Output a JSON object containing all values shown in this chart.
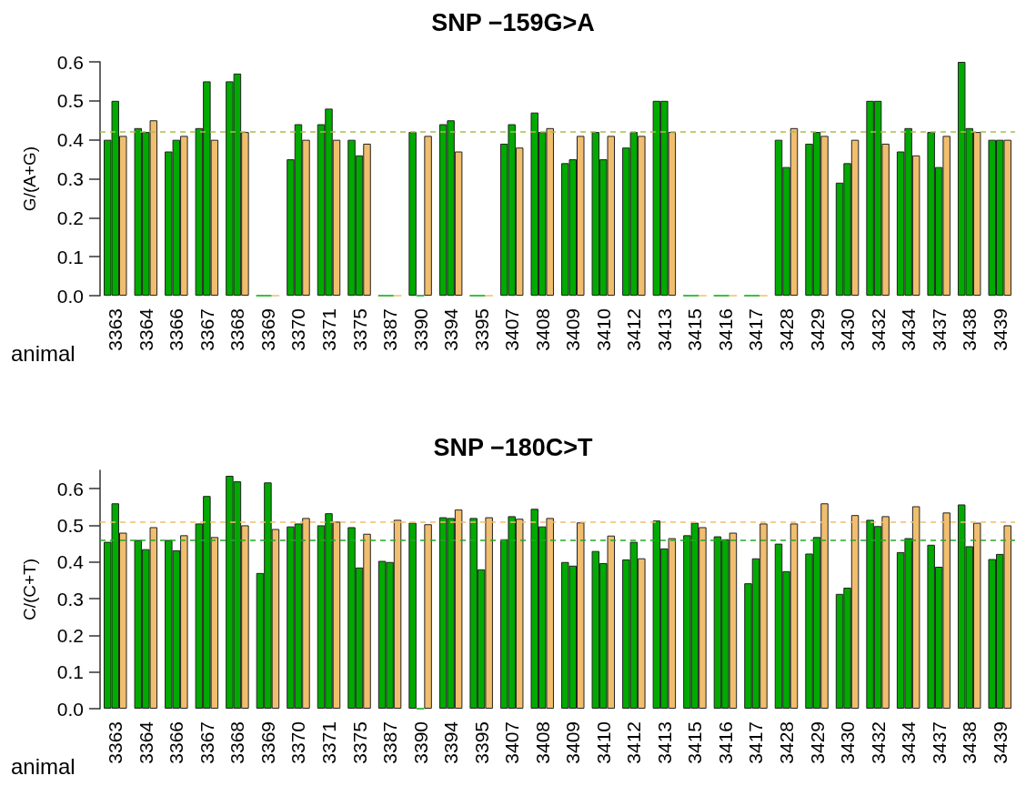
{
  "chart_data": [
    {
      "type": "bar",
      "title": "SNP −159G>A",
      "ylabel": "G/(A+G)",
      "xlabel": "animal",
      "categories": [
        "3363",
        "3364",
        "3366",
        "3367",
        "3368",
        "3369",
        "3370",
        "3371",
        "3375",
        "3387",
        "3390",
        "3394",
        "3395",
        "3407",
        "3408",
        "3409",
        "3410",
        "3412",
        "3413",
        "3415",
        "3416",
        "3417",
        "3428",
        "3429",
        "3430",
        "3432",
        "3434",
        "3437",
        "3438",
        "3439"
      ],
      "series": [
        {
          "color": "#00aa00",
          "values": [
            0.4,
            0.43,
            0.37,
            0.43,
            0.55,
            0,
            0.35,
            0.44,
            0.4,
            0,
            0.42,
            0.44,
            0,
            0.39,
            0.47,
            0.34,
            0.42,
            0.38,
            0.5,
            0,
            0,
            0,
            0.4,
            0.39,
            0.29,
            0.5,
            0.37,
            0.42,
            0.6,
            0.4
          ]
        },
        {
          "color": "#00aa00",
          "values": [
            0.5,
            0.42,
            0.4,
            0.55,
            0.57,
            0,
            0.44,
            0.48,
            0.36,
            0,
            0,
            0.45,
            0,
            0.44,
            0.42,
            0.35,
            0.35,
            0.42,
            0.5,
            0,
            0,
            0,
            0.33,
            0.42,
            0.34,
            0.5,
            0.43,
            0.33,
            0.43,
            0.4
          ]
        },
        {
          "color": "#f0be6e",
          "values": [
            0.41,
            0.45,
            0.41,
            0.4,
            0.42,
            0,
            0.4,
            0.4,
            0.39,
            0,
            0.41,
            0.37,
            0,
            0.38,
            0.43,
            0.41,
            0.41,
            0.41,
            0.42,
            0,
            0,
            0,
            0.43,
            0.41,
            0.4,
            0.39,
            0.36,
            0.41,
            0.42,
            0.4
          ]
        }
      ],
      "ylim": [
        0,
        0.6
      ],
      "yticks": [
        {
          "value": 0,
          "label": "0.0"
        },
        {
          "value": 0.1,
          "label": "0.1"
        },
        {
          "value": 0.2,
          "label": "0.2"
        },
        {
          "value": 0.3,
          "label": "0.3"
        },
        {
          "value": 0.4,
          "label": "0.4"
        },
        {
          "value": 0.5,
          "label": "0.5"
        },
        {
          "value": 0.6,
          "label": "0.6"
        }
      ],
      "ref_lines": [
        {
          "axis": "y",
          "value": 0.42,
          "color": "#a8c04a",
          "line_style": "dashed"
        }
      ],
      "grid": false
    },
    {
      "type": "bar",
      "title": "SNP −180C>T",
      "ylabel": "C/(C+T)",
      "xlabel": "animal",
      "categories": [
        "3363",
        "3364",
        "3366",
        "3367",
        "3368",
        "3369",
        "3370",
        "3371",
        "3375",
        "3387",
        "3390",
        "3394",
        "3395",
        "3407",
        "3408",
        "3409",
        "3410",
        "3412",
        "3413",
        "3415",
        "3416",
        "3417",
        "3428",
        "3429",
        "3430",
        "3432",
        "3434",
        "3437",
        "3438",
        "3439"
      ],
      "series": [
        {
          "color": "#00aa00",
          "values": [
            0.455,
            0.46,
            0.46,
            0.505,
            0.635,
            0.37,
            0.497,
            0.5,
            0.495,
            0.403,
            0.507,
            0.522,
            0.52,
            0.462,
            0.545,
            0.4,
            0.43,
            0.407,
            0.513,
            0.473,
            0.47,
            0.342,
            0.45,
            0.423,
            0.313,
            0.515,
            0.427,
            0.447,
            0.557,
            0.408
          ]
        },
        {
          "color": "#00aa00",
          "values": [
            0.56,
            0.435,
            0.432,
            0.58,
            0.62,
            0.617,
            0.505,
            0.533,
            0.385,
            0.4,
            0,
            0.52,
            0.38,
            0.525,
            0.497,
            0.39,
            0.397,
            0.455,
            0.437,
            0.507,
            0.462,
            0.41,
            0.375,
            0.468,
            0.33,
            0.498,
            0.465,
            0.387,
            0.443,
            0.422
          ]
        },
        {
          "color": "#f0be6e",
          "values": [
            0.48,
            0.495,
            0.473,
            0.468,
            0.5,
            0.49,
            0.52,
            0.51,
            0.477,
            0.515,
            0.503,
            0.543,
            0.522,
            0.518,
            0.52,
            0.508,
            0.472,
            0.41,
            0.465,
            0.495,
            0.48,
            0.505,
            0.505,
            0.56,
            0.528,
            0.525,
            0.552,
            0.535,
            0.507,
            0.5
          ]
        }
      ],
      "ylim": [
        0,
        0.65
      ],
      "yticks": [
        {
          "value": 0,
          "label": "0.0"
        },
        {
          "value": 0.1,
          "label": "0.1"
        },
        {
          "value": 0.2,
          "label": "0.2"
        },
        {
          "value": 0.3,
          "label": "0.3"
        },
        {
          "value": 0.4,
          "label": "0.4"
        },
        {
          "value": 0.5,
          "label": "0.5"
        },
        {
          "value": 0.6,
          "label": "0.6"
        }
      ],
      "ref_lines": [
        {
          "axis": "y",
          "value": 0.51,
          "color": "#f0be6e",
          "line_style": "dashed"
        },
        {
          "axis": "y",
          "value": 0.462,
          "color": "#22aa22",
          "line_style": "dashed"
        }
      ],
      "grid": false
    }
  ]
}
